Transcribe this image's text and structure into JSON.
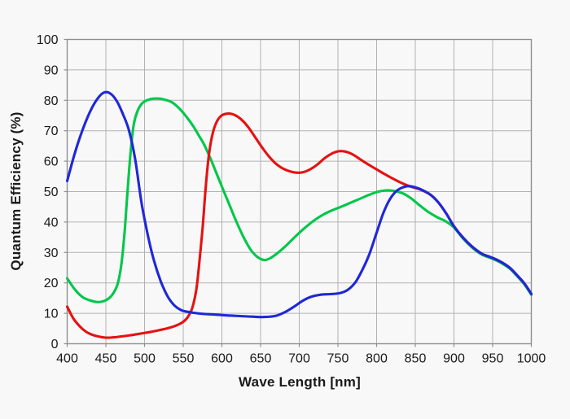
{
  "colors": {
    "background": "#f8f8f8",
    "grid": "#b2b2b2",
    "plot_border": "#8f8f8f",
    "text": "#1a1a1a",
    "red_channel": "#e51212",
    "green_channel": "#00c74a",
    "blue_channel": "#1f27d8"
  },
  "chart_data": {
    "type": "line",
    "title": "",
    "xlabel": "Wave Length [nm]",
    "ylabel": "Quantum Efficiency (%)",
    "xlim": [
      400,
      1000
    ],
    "ylim": [
      0,
      100
    ],
    "x_ticks": [
      400,
      450,
      500,
      550,
      600,
      650,
      700,
      750,
      800,
      850,
      900,
      950,
      1000
    ],
    "y_ticks": [
      0,
      10,
      20,
      30,
      40,
      50,
      60,
      70,
      80,
      90,
      100
    ],
    "grid": true,
    "legend": "none",
    "series": [
      {
        "name": "green-channel",
        "color": "#00c74a",
        "points": [
          [
            400,
            21.5
          ],
          [
            410,
            17.8
          ],
          [
            420,
            15.3
          ],
          [
            430,
            14.2
          ],
          [
            440,
            13.7
          ],
          [
            450,
            14.3
          ],
          [
            458,
            16
          ],
          [
            465,
            19.5
          ],
          [
            470,
            26
          ],
          [
            474,
            36
          ],
          [
            478,
            50
          ],
          [
            482,
            63
          ],
          [
            486,
            72
          ],
          [
            491,
            76.5
          ],
          [
            497,
            79
          ],
          [
            505,
            80.2
          ],
          [
            515,
            80.6
          ],
          [
            525,
            80.3
          ],
          [
            535,
            79.4
          ],
          [
            545,
            77.3
          ],
          [
            555,
            74.3
          ],
          [
            563,
            71.5
          ],
          [
            570,
            68.5
          ],
          [
            577,
            65.5
          ],
          [
            585,
            61
          ],
          [
            593,
            56
          ],
          [
            601,
            51
          ],
          [
            610,
            45.5
          ],
          [
            619,
            40
          ],
          [
            628,
            35
          ],
          [
            637,
            31
          ],
          [
            646,
            28.5
          ],
          [
            655,
            27.5
          ],
          [
            663,
            28.2
          ],
          [
            672,
            29.8
          ],
          [
            682,
            32
          ],
          [
            694,
            35
          ],
          [
            706,
            37.8
          ],
          [
            718,
            40.3
          ],
          [
            730,
            42.3
          ],
          [
            742,
            43.8
          ],
          [
            754,
            45
          ],
          [
            766,
            46.3
          ],
          [
            778,
            47.6
          ],
          [
            790,
            48.9
          ],
          [
            801,
            49.9
          ],
          [
            812,
            50.4
          ],
          [
            823,
            50.2
          ],
          [
            834,
            49.4
          ],
          [
            845,
            47.7
          ],
          [
            856,
            45.4
          ],
          [
            867,
            43.3
          ],
          [
            878,
            41.6
          ],
          [
            889,
            40.3
          ],
          [
            900,
            38.2
          ],
          [
            912,
            34.5
          ],
          [
            924,
            31.5
          ],
          [
            936,
            29.3
          ],
          [
            948,
            28.1
          ],
          [
            960,
            26.7
          ],
          [
            972,
            24.7
          ],
          [
            982,
            22.1
          ],
          [
            991,
            19.5
          ],
          [
            1000,
            16.1
          ]
        ]
      },
      {
        "name": "red-channel",
        "color": "#e51212",
        "points": [
          [
            400,
            12.2
          ],
          [
            408,
            8.3
          ],
          [
            416,
            5.8
          ],
          [
            424,
            4
          ],
          [
            432,
            3
          ],
          [
            440,
            2.4
          ],
          [
            450,
            2
          ],
          [
            460,
            2.1
          ],
          [
            470,
            2.4
          ],
          [
            482,
            2.8
          ],
          [
            494,
            3.3
          ],
          [
            506,
            3.8
          ],
          [
            518,
            4.4
          ],
          [
            530,
            5.1
          ],
          [
            540,
            5.9
          ],
          [
            549,
            7
          ],
          [
            556,
            8.8
          ],
          [
            562,
            12
          ],
          [
            567,
            18
          ],
          [
            571,
            27
          ],
          [
            575,
            38
          ],
          [
            578,
            48
          ],
          [
            581,
            57
          ],
          [
            584,
            63.5
          ],
          [
            588,
            69
          ],
          [
            593,
            72.8
          ],
          [
            599,
            74.9
          ],
          [
            606,
            75.6
          ],
          [
            613,
            75.5
          ],
          [
            620,
            74.7
          ],
          [
            628,
            73
          ],
          [
            636,
            70.5
          ],
          [
            644,
            67.5
          ],
          [
            652,
            64.5
          ],
          [
            660,
            61.8
          ],
          [
            668,
            59.6
          ],
          [
            676,
            58
          ],
          [
            684,
            57
          ],
          [
            692,
            56.4
          ],
          [
            700,
            56.2
          ],
          [
            708,
            56.6
          ],
          [
            716,
            57.6
          ],
          [
            724,
            59
          ],
          [
            732,
            60.8
          ],
          [
            740,
            62.2
          ],
          [
            748,
            63.1
          ],
          [
            756,
            63.3
          ],
          [
            764,
            62.8
          ],
          [
            772,
            61.8
          ],
          [
            780,
            60.4
          ],
          [
            790,
            58.8
          ],
          [
            800,
            57.3
          ],
          [
            810,
            55.8
          ],
          [
            820,
            54.4
          ],
          [
            830,
            53.1
          ],
          [
            840,
            52
          ],
          [
            850,
            51.2
          ],
          [
            860,
            50.3
          ],
          [
            870,
            48.9
          ],
          [
            880,
            46.4
          ],
          [
            890,
            42.8
          ],
          [
            900,
            38.6
          ],
          [
            912,
            34.8
          ],
          [
            924,
            31.8
          ],
          [
            936,
            29.6
          ],
          [
            948,
            28.4
          ],
          [
            960,
            27
          ],
          [
            972,
            25
          ],
          [
            982,
            22.4
          ],
          [
            991,
            19.8
          ],
          [
            1000,
            16.4
          ]
        ]
      },
      {
        "name": "blue-channel",
        "color": "#1f27d8",
        "points": [
          [
            400,
            53.5
          ],
          [
            408,
            61
          ],
          [
            416,
            67.5
          ],
          [
            424,
            73
          ],
          [
            432,
            77.5
          ],
          [
            440,
            80.8
          ],
          [
            448,
            82.6
          ],
          [
            456,
            82.2
          ],
          [
            464,
            79.8
          ],
          [
            472,
            75.5
          ],
          [
            480,
            70
          ],
          [
            488,
            60.5
          ],
          [
            496,
            46.5
          ],
          [
            504,
            36
          ],
          [
            512,
            27.5
          ],
          [
            521,
            20.5
          ],
          [
            530,
            15.5
          ],
          [
            539,
            12.5
          ],
          [
            548,
            11
          ],
          [
            558,
            10.4
          ],
          [
            572,
            9.9
          ],
          [
            590,
            9.6
          ],
          [
            615,
            9.2
          ],
          [
            640,
            8.9
          ],
          [
            655,
            8.8
          ],
          [
            670,
            9.2
          ],
          [
            683,
            10.6
          ],
          [
            695,
            12.5
          ],
          [
            705,
            14.2
          ],
          [
            715,
            15.4
          ],
          [
            727,
            16.1
          ],
          [
            740,
            16.3
          ],
          [
            752,
            16.6
          ],
          [
            762,
            17.6
          ],
          [
            772,
            20
          ],
          [
            780,
            23.5
          ],
          [
            790,
            29
          ],
          [
            800,
            36.5
          ],
          [
            808,
            42.5
          ],
          [
            816,
            47
          ],
          [
            824,
            49.8
          ],
          [
            832,
            51.2
          ],
          [
            841,
            51.8
          ],
          [
            850,
            51.4
          ],
          [
            860,
            50.4
          ],
          [
            870,
            48.9
          ],
          [
            880,
            46.4
          ],
          [
            890,
            42.8
          ],
          [
            900,
            38.6
          ],
          [
            912,
            34.8
          ],
          [
            924,
            31.8
          ],
          [
            936,
            29.6
          ],
          [
            948,
            28.4
          ],
          [
            960,
            27
          ],
          [
            972,
            25
          ],
          [
            982,
            22.4
          ],
          [
            991,
            19.8
          ],
          [
            1000,
            16.4
          ]
        ]
      }
    ]
  }
}
